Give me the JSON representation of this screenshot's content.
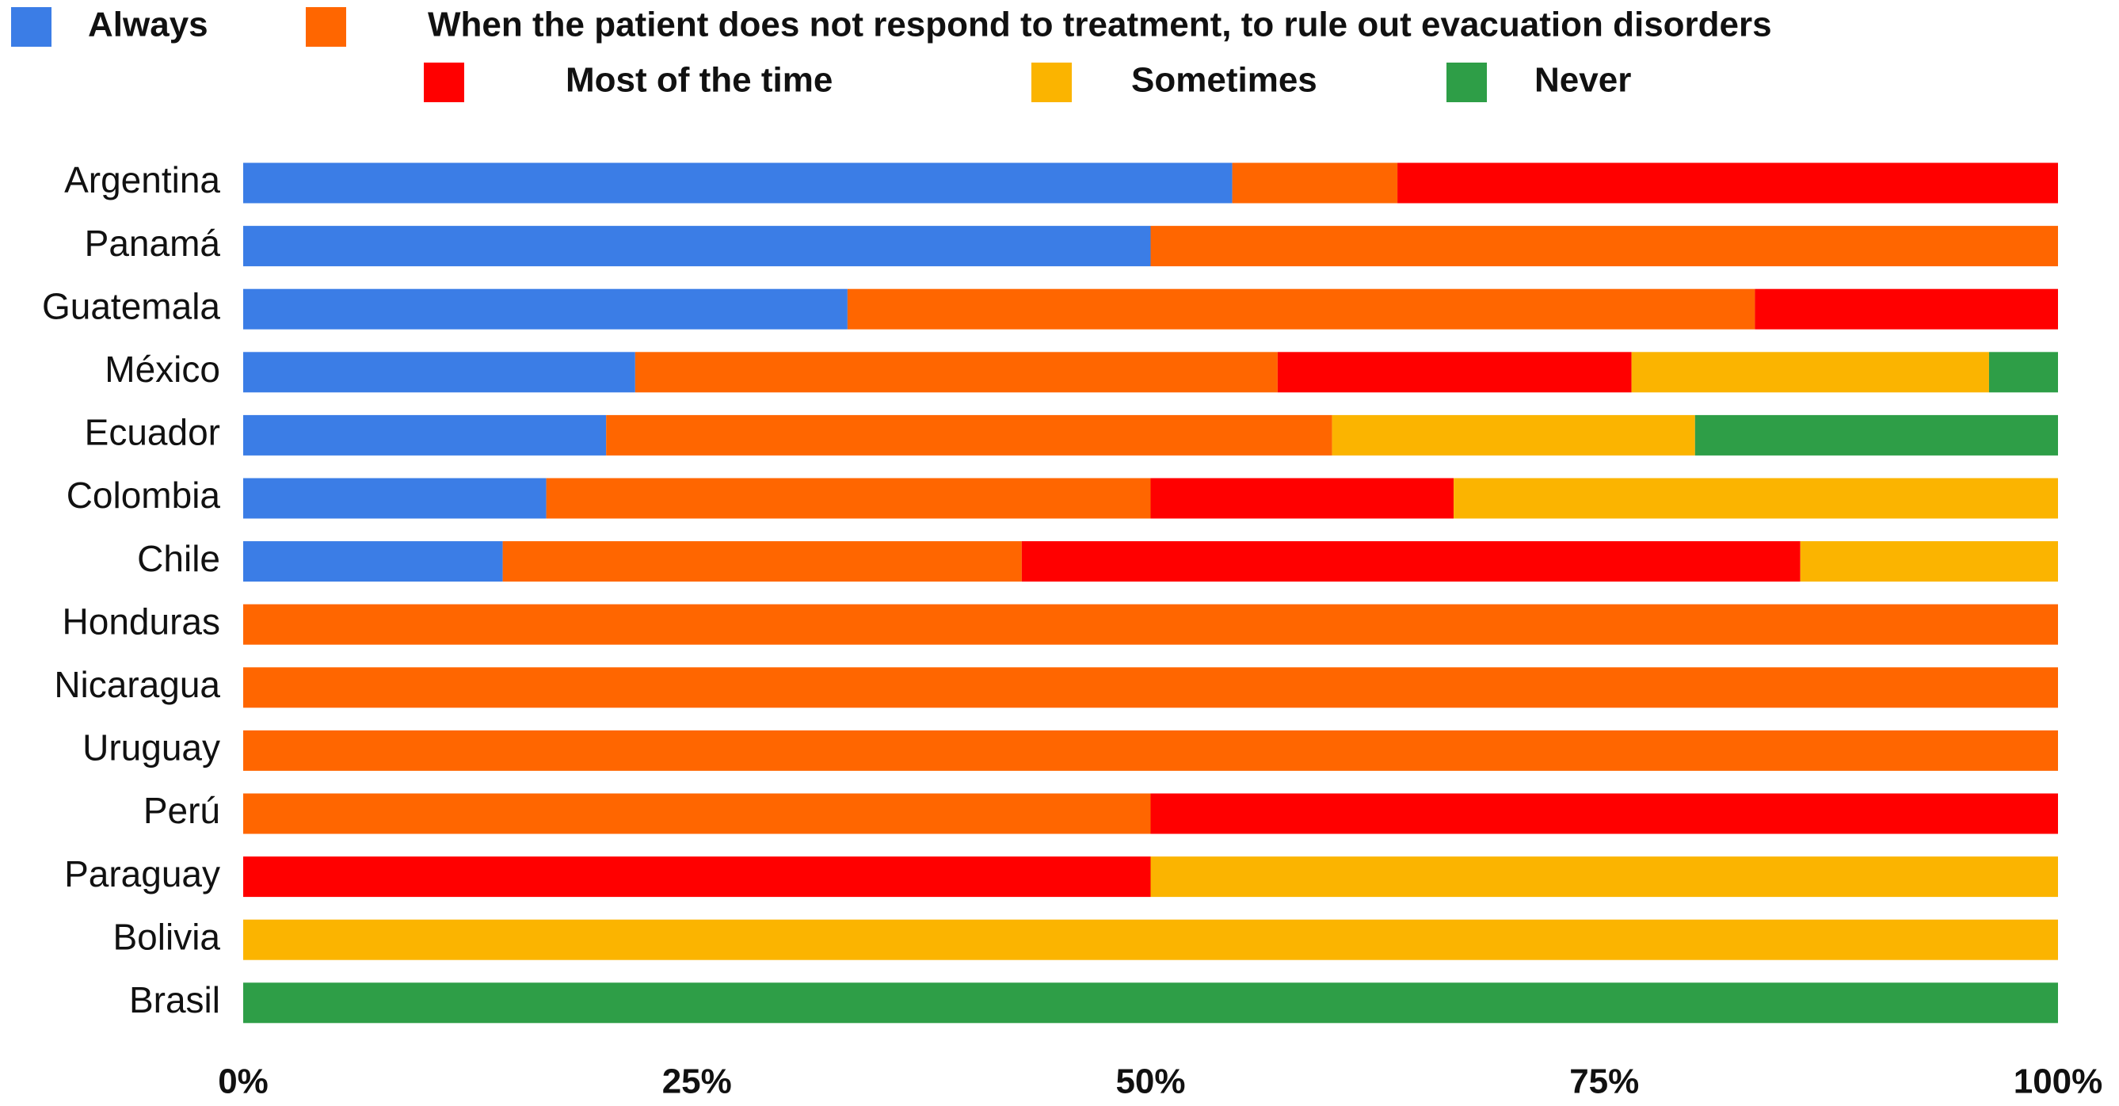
{
  "chart_data": {
    "type": "stacked-barh",
    "categories": [
      "Argentina",
      "Panamá",
      "Guatemala",
      "México",
      "Ecuador",
      "Colombia",
      "Chile",
      "Honduras",
      "Nicaragua",
      "Uruguay",
      "Perú",
      "Paraguay",
      "Bolivia",
      "Brasil"
    ],
    "series": [
      {
        "name": "Always",
        "color": "#3b7de6",
        "values": [
          54.5,
          50,
          33.3,
          21.6,
          20,
          16.7,
          14.3,
          0,
          0,
          0,
          0,
          0,
          0,
          0
        ]
      },
      {
        "name": "When the patient does not respond to treatment, to rule out evacuation disorders",
        "color": "#ff6600",
        "values": [
          9.1,
          50,
          50,
          35.4,
          40,
          33.3,
          28.6,
          100,
          100,
          100,
          50,
          0,
          0,
          0
        ]
      },
      {
        "name": "Most of the time",
        "color": "#ff0000",
        "values": [
          36.4,
          0,
          16.7,
          19.5,
          0,
          16.7,
          42.9,
          0,
          0,
          0,
          50,
          50,
          0,
          0
        ]
      },
      {
        "name": "Sometimes",
        "color": "#fbb400",
        "values": [
          0,
          0,
          0,
          19.7,
          20,
          33.3,
          14.2,
          0,
          0,
          0,
          0,
          50,
          100,
          0
        ]
      },
      {
        "name": "Never",
        "color": "#2e9e47",
        "values": [
          0,
          0,
          0,
          3.8,
          20,
          0,
          0,
          0,
          0,
          0,
          0,
          0,
          0,
          100
        ]
      }
    ],
    "xlim": [
      0,
      100
    ],
    "xticks": [
      {
        "value": 0,
        "label": "0%"
      },
      {
        "value": 25,
        "label": "25%"
      },
      {
        "value": 50,
        "label": "50%"
      },
      {
        "value": 75,
        "label": "75%"
      },
      {
        "value": 100,
        "label": "100%"
      }
    ],
    "legend": "top"
  }
}
